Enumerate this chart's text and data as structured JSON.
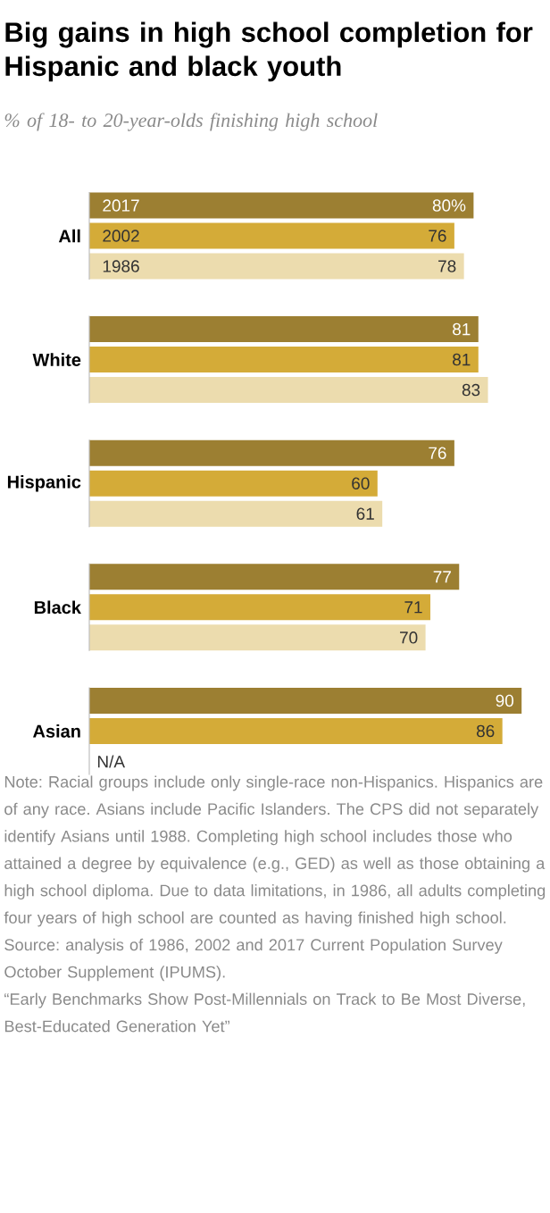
{
  "chart_data": {
    "type": "bar",
    "orientation": "horizontal",
    "title": "Big gains in high school completion for Hispanic and black youth",
    "subtitle": "% of 18- to 20-year-olds finishing high school",
    "categories": [
      "All",
      "White",
      "Hispanic",
      "Black",
      "Asian"
    ],
    "series": [
      {
        "name": "2017",
        "color": "#9c7f32",
        "values": [
          80,
          81,
          76,
          77,
          90
        ],
        "value_labels": [
          "80%",
          "81",
          "76",
          "77",
          "90"
        ]
      },
      {
        "name": "2002",
        "color": "#d4ab38",
        "values": [
          76,
          81,
          60,
          71,
          86
        ],
        "value_labels": [
          "76",
          "81",
          "60",
          "71",
          "86"
        ]
      },
      {
        "name": "1986",
        "color": "#ecdcae",
        "values": [
          78,
          83,
          61,
          70,
          null
        ],
        "value_labels": [
          "78",
          "83",
          "61",
          "70",
          "N/A"
        ]
      }
    ],
    "legend": "top left",
    "annotations": [
      "Note: Racial groups include only single-race non-Hispanics. Hispanics are of any race. Asians include Pacific Islanders. The CPS did not separately identify Asians until 1988. Completing high school includes those who attained a degree by equivalence (e.g., GED) as well as those obtaining a high school diploma. Due to data limitations, in 1986, all adults completing four years of high school are counted as having finished high school.",
      "Source: analysis of 1986, 2002 and 2017 Current Population Survey October Supplement (IPUMS).",
      "“Early Benchmarks Show Post-Millennials on Track to Be Most Diverse, Best-Educated Generation Yet”"
    ]
  }
}
